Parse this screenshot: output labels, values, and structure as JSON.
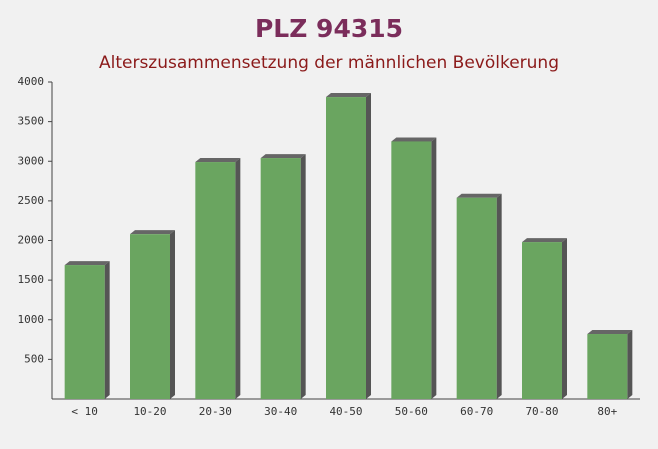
{
  "chart_data": {
    "type": "bar",
    "title": "PLZ 94315",
    "subtitle": "Alterszusammensetzung der männlichen Bevölkerung",
    "categories": [
      "< 10",
      "10-20",
      "20-30",
      "30-40",
      "40-50",
      "50-60",
      "60-70",
      "70-80",
      "80+"
    ],
    "values": [
      1690,
      2080,
      2990,
      3040,
      3810,
      3250,
      2540,
      1980,
      820
    ],
    "color": "#6aa560",
    "ylim": [
      0,
      4000
    ],
    "yticks": [
      500,
      1000,
      1500,
      2000,
      2500,
      3000,
      3500,
      4000
    ]
  }
}
